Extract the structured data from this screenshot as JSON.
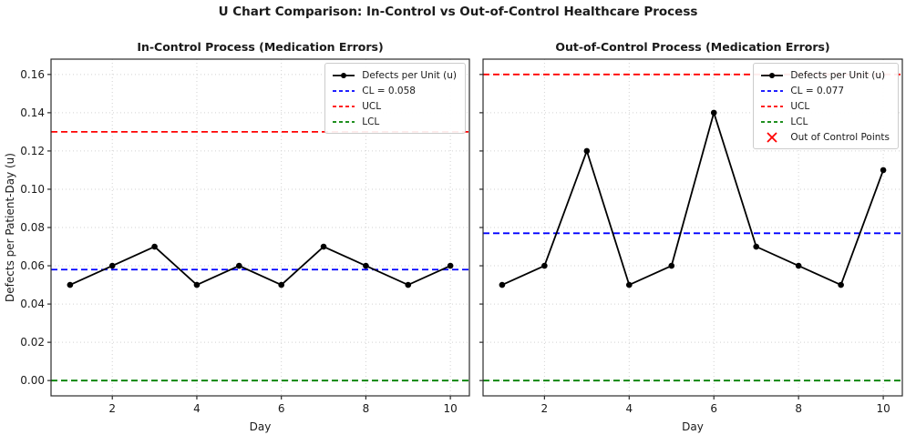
{
  "figure": {
    "title": "U Chart Comparison: In-Control vs Out-of-Control Healthcare Process",
    "background": "#ffffff"
  },
  "colors": {
    "data_line": "#000000",
    "cl": "#0000ff",
    "ucl": "#ff0000",
    "lcl": "#008000",
    "out_of_control": "#ff0000",
    "grid": "#d2d2d2",
    "spine": "#2b2b2b",
    "text": "#1a1a1a"
  },
  "chart_data": [
    {
      "type": "line",
      "title": "In-Control Process (Medication Errors)",
      "xlabel": "Day",
      "ylabel": "Defects per Patient-Day (u)",
      "x": [
        1,
        2,
        3,
        4,
        5,
        6,
        7,
        8,
        9,
        10
      ],
      "series": [
        {
          "name": "Defects per Unit (u)",
          "color": "#000000",
          "values": [
            0.05,
            0.06,
            0.07,
            0.05,
            0.06,
            0.05,
            0.07,
            0.06,
            0.05,
            0.06
          ]
        }
      ],
      "control_limits": {
        "cl": 0.058,
        "ucl": 0.13,
        "lcl": 0.0
      },
      "xlim": [
        0.55,
        10.45
      ],
      "ylim": [
        -0.008,
        0.168
      ],
      "xtick_values": [
        2,
        4,
        6,
        8,
        10
      ],
      "xtick_labels": [
        "2",
        "4",
        "6",
        "8",
        "10"
      ],
      "ytick_values": [
        0.0,
        0.02,
        0.04,
        0.06,
        0.08,
        0.1,
        0.12,
        0.14,
        0.16
      ],
      "ytick_labels": [
        "0.00",
        "0.02",
        "0.04",
        "0.06",
        "0.08",
        "0.10",
        "0.12",
        "0.14",
        "0.16"
      ],
      "show_ytick_labels": true,
      "grid": true,
      "legend": {
        "position": "upper-right",
        "entries": [
          {
            "label": "Defects per Unit (u)",
            "kind": "line-marker",
            "color": "#000000"
          },
          {
            "label": "CL = 0.058",
            "kind": "dashed",
            "color": "#0000ff"
          },
          {
            "label": "UCL",
            "kind": "dashed",
            "color": "#ff0000"
          },
          {
            "label": "LCL",
            "kind": "dashed",
            "color": "#008000"
          }
        ]
      }
    },
    {
      "type": "line",
      "title": "Out-of-Control Process (Medication Errors)",
      "xlabel": "Day",
      "ylabel": "",
      "x": [
        1,
        2,
        3,
        4,
        5,
        6,
        7,
        8,
        9,
        10
      ],
      "series": [
        {
          "name": "Defects per Unit (u)",
          "color": "#000000",
          "values": [
            0.05,
            0.06,
            0.12,
            0.05,
            0.06,
            0.14,
            0.07,
            0.06,
            0.05,
            0.11
          ]
        }
      ],
      "control_limits": {
        "cl": 0.077,
        "ucl": 0.16,
        "lcl": 0.0
      },
      "xlim": [
        0.55,
        10.45
      ],
      "ylim": [
        -0.008,
        0.168
      ],
      "xtick_values": [
        2,
        4,
        6,
        8,
        10
      ],
      "xtick_labels": [
        "2",
        "4",
        "6",
        "8",
        "10"
      ],
      "ytick_values": [
        0.0,
        0.02,
        0.04,
        0.06,
        0.08,
        0.1,
        0.12,
        0.14,
        0.16
      ],
      "ytick_labels": [
        "0.00",
        "0.02",
        "0.04",
        "0.06",
        "0.08",
        "0.10",
        "0.12",
        "0.14",
        "0.16"
      ],
      "show_ytick_labels": false,
      "grid": true,
      "legend": {
        "position": "upper-right",
        "entries": [
          {
            "label": "Defects per Unit (u)",
            "kind": "line-marker",
            "color": "#000000"
          },
          {
            "label": "CL = 0.077",
            "kind": "dashed",
            "color": "#0000ff"
          },
          {
            "label": "UCL",
            "kind": "dashed",
            "color": "#ff0000"
          },
          {
            "label": "LCL",
            "kind": "dashed",
            "color": "#008000"
          },
          {
            "label": "Out of Control Points",
            "kind": "x-marker",
            "color": "#ff0000"
          }
        ]
      }
    }
  ]
}
